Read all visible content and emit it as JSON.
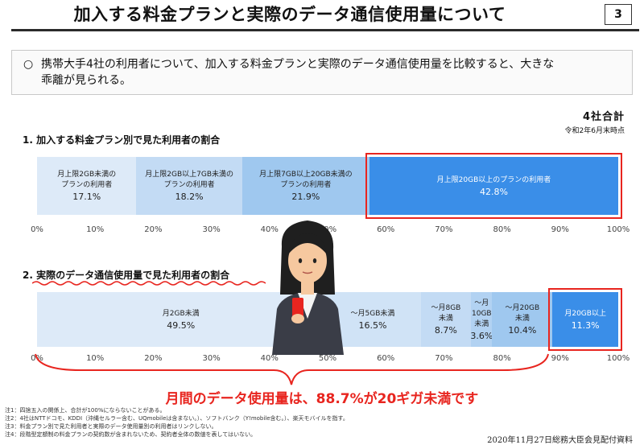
{
  "header": {
    "title": "加入する料金プランと実際のデータ通信使用量について",
    "page_number": "3"
  },
  "summary": {
    "bullet": "○",
    "line1": "携帯大手4社の利用者について、加入する料金プランと実際のデータ通信使用量を比較すると、大きな",
    "line2": "乖離が見られる。"
  },
  "totals": {
    "label": "4社合計",
    "date": "令和2年6月末時点"
  },
  "section1": {
    "heading": "1. 加入する料金プラン別で見た利用者の割合"
  },
  "section2": {
    "heading": "2. 実際のデータ通信使用量で見た利用者の割合"
  },
  "chart_data": [
    {
      "type": "bar",
      "orientation": "horizontal-stacked-100",
      "title": "1. 加入する料金プラン別で見た利用者の割合",
      "xlim": [
        0,
        100
      ],
      "ticks": [
        "0%",
        "10%",
        "20%",
        "30%",
        "40%",
        "50%",
        "60%",
        "70%",
        "80%",
        "90%",
        "100%"
      ],
      "segments": [
        {
          "line1": "月上限2GB未満の",
          "line2": "プランの利用者",
          "value": 17.1,
          "label": "17.1%",
          "color": "#ddeaf8"
        },
        {
          "line1": "月上限2GB以上7GB未満の",
          "line2": "プランの利用者",
          "value": 18.2,
          "label": "18.2%",
          "color": "#c3dbf4"
        },
        {
          "line1": "月上限7GB以上20GB未満の",
          "line2": "プランの利用者",
          "value": 21.9,
          "label": "21.9%",
          "color": "#9fc8ef"
        },
        {
          "line1": "月上限20GB以上のプランの利用者",
          "line2": "",
          "value": 42.8,
          "label": "42.8%",
          "color": "#3a8ee8"
        }
      ]
    },
    {
      "type": "bar",
      "orientation": "horizontal-stacked-100",
      "title": "2. 実際のデータ通信使用量で見た利用者の割合",
      "xlim": [
        0,
        100
      ],
      "ticks": [
        "0%",
        "10%",
        "20%",
        "30%",
        "40%",
        "50%",
        "60%",
        "70%",
        "80%",
        "90%",
        "100%"
      ],
      "segments": [
        {
          "line1": "月2GB未満",
          "line2": "",
          "value": 49.5,
          "label": "49.5%",
          "color": "#ddeaf8"
        },
        {
          "line1": "～月5GB未満",
          "line2": "",
          "value": 16.5,
          "label": "16.5%",
          "color": "#d0e3f6"
        },
        {
          "line1": "～月8GB",
          "line2": "未満",
          "value": 8.7,
          "label": "8.7%",
          "color": "#c3dbf4"
        },
        {
          "line1": "～月10GB",
          "line2": "未満",
          "value": 3.6,
          "label": "3.6%",
          "color": "#b2d2f2"
        },
        {
          "line1": "～月20GB",
          "line2": "未満",
          "value": 10.4,
          "label": "10.4%",
          "color": "#9fc8ef"
        },
        {
          "line1": "月20GB以上",
          "line2": "",
          "value": 11.3,
          "label": "11.3%",
          "color": "#3a8ee8"
        }
      ]
    }
  ],
  "callout": "月間のデータ使用量は、88.7%が20ギガ未満です",
  "notes": [
    "注1：四捨五入の関係上、合計が100%にならないことがある。",
    "注2：4社はNTTドコモ、KDDI（沖縄セルラー含む、UQmobileは含まない。）、ソフトバンク（Y!mobile含む。）、楽天モバイルを指す。",
    "注3：料金プラン別で見た利用者と実際のデータ使用量別の利用者はリンクしない。",
    "注4：段階型定額制の料金プランの契約数が含まれないため、契約者全体の数値を表してはいない。"
  ],
  "source": "2020年11月27日総務大臣会見配付資料",
  "colors": {
    "accent_red": "#e8251f",
    "bar_dark": "#3a8ee8"
  }
}
